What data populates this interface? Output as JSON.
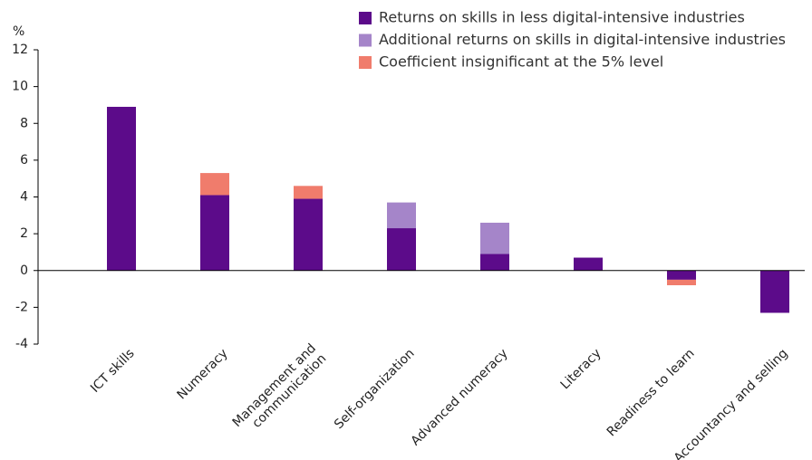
{
  "chart_data": {
    "type": "bar",
    "stacked": true,
    "y_label": "%",
    "categories": [
      "ICT skills",
      "Numeracy",
      "Management and\ncommunication",
      "Self-organization",
      "Advanced numeracy",
      "Literacy",
      "Readiness to learn",
      "Accountancy and selling"
    ],
    "series": [
      {
        "name": "Returns on skills in less digital-intensive industries",
        "color": "#5c0b8a",
        "values": [
          8.9,
          4.1,
          3.9,
          2.3,
          0.9,
          0.7,
          -0.5,
          -2.3
        ]
      },
      {
        "name": "Additional returns on skills in digital-intensive industries",
        "color": "#a585c9",
        "values": [
          null,
          null,
          null,
          1.4,
          1.7,
          null,
          null,
          null
        ]
      },
      {
        "name": "Coefficient insignificant at the 5% level",
        "color": "#f07c6c",
        "values": [
          null,
          1.2,
          0.7,
          null,
          null,
          null,
          -0.3,
          null
        ]
      }
    ],
    "ylim": [
      -4,
      12
    ],
    "yticks": [
      -4,
      -2,
      0,
      2,
      4,
      6,
      8,
      10,
      12
    ]
  }
}
